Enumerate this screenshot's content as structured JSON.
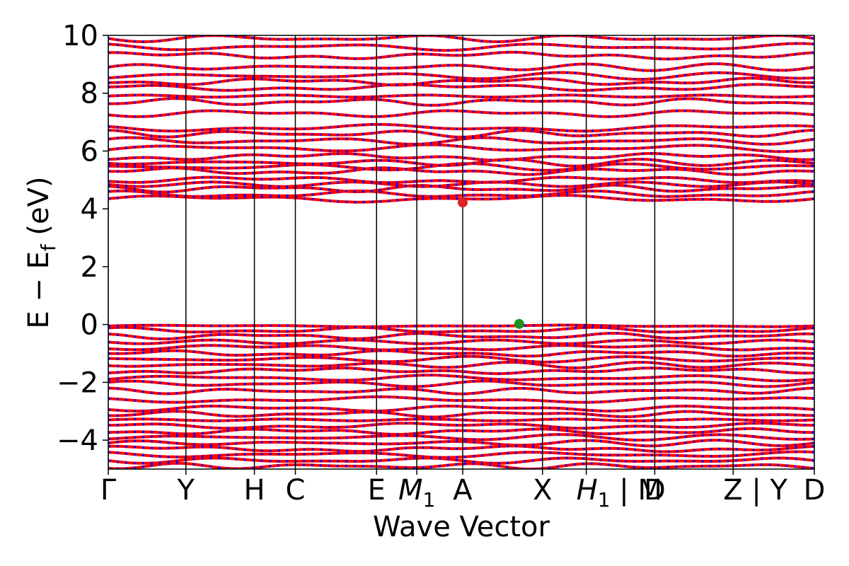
{
  "chart_data": {
    "type": "line",
    "title": "",
    "xlabel": "Wave Vector",
    "ylabel": "E − E_f (eV)",
    "ylabel_main": "E  −  E",
    "ylabel_sub": "f",
    "ylabel_unit": " (eV)",
    "ylim": [
      -5,
      10
    ],
    "yticks": [
      -4,
      -2,
      0,
      2,
      4,
      6,
      8,
      10
    ],
    "ytick_labels": [
      "−4",
      "−2",
      "0",
      "2",
      "4",
      "6",
      "8",
      "10"
    ],
    "x_range": [
      0,
      1
    ],
    "kpoint_labels": [
      {
        "x": 0.0,
        "main": "Γ",
        "sub": ""
      },
      {
        "x": 0.11,
        "main": "Y",
        "sub": ""
      },
      {
        "x": 0.207,
        "main": "H",
        "sub": ""
      },
      {
        "x": 0.265,
        "main": "C",
        "sub": ""
      },
      {
        "x": 0.38,
        "main": "E",
        "sub": ""
      },
      {
        "x": 0.437,
        "main": "M",
        "sub": "1"
      },
      {
        "x": 0.502,
        "main": "A",
        "sub": ""
      },
      {
        "x": 0.615,
        "main": "X",
        "sub": ""
      },
      {
        "x": 0.677,
        "main": "H",
        "sub": "1",
        "suffix": " | M"
      },
      {
        "x": 0.774,
        "main": "D",
        "sub": ""
      },
      {
        "x": 0.885,
        "main": "Z",
        "sub": "",
        "suffix": " | Y"
      },
      {
        "x": 1.0,
        "main": "D",
        "sub": ""
      }
    ],
    "segment_boundaries": [
      0.0,
      0.11,
      0.207,
      0.265,
      0.38,
      0.437,
      0.502,
      0.615,
      0.677,
      0.774,
      0.885,
      1.0
    ],
    "conduction_band_levels": [
      4.35,
      4.5,
      4.7,
      4.85,
      5.0,
      5.3,
      5.45,
      5.6,
      5.8,
      6.1,
      6.35,
      6.6,
      6.8,
      7.3,
      7.7,
      7.9,
      8.2,
      8.4,
      8.6,
      8.9,
      9.3,
      9.6,
      9.9
    ],
    "valence_band_levels": [
      -0.05,
      -0.2,
      -0.4,
      -0.6,
      -0.8,
      -1.0,
      -1.2,
      -1.4,
      -1.6,
      -1.85,
      -2.05,
      -2.3,
      -2.6,
      -2.9,
      -3.1,
      -3.3,
      -3.5,
      -3.7,
      -3.9,
      -4.1,
      -4.3,
      -4.5,
      -4.7,
      -4.9
    ],
    "markers": [
      {
        "name": "CBM",
        "x": 0.502,
        "y": 4.22,
        "color": "#dd2222"
      },
      {
        "name": "VBM",
        "x": 0.582,
        "y": 0.02,
        "color": "#1f8f1f"
      }
    ],
    "colors": {
      "band_primary": "#ff0000",
      "band_dash": "#0000ff",
      "vline": "#000000"
    }
  }
}
